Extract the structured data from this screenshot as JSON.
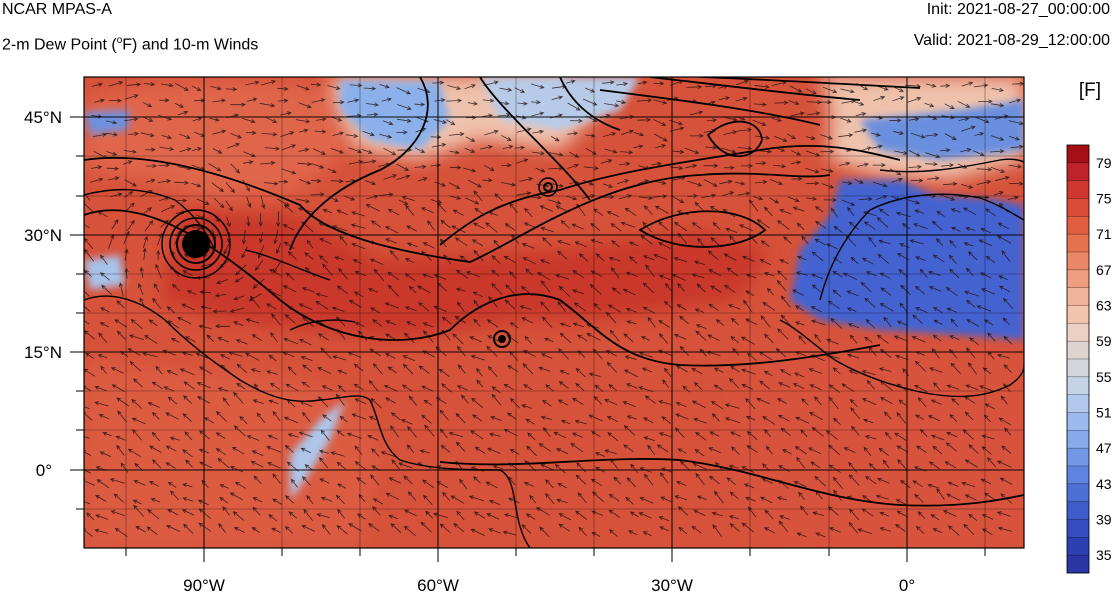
{
  "header": {
    "model": "NCAR MPAS-A",
    "field_prefix": "2-m Dew Point (",
    "field_deg": "o",
    "field_suffix": "F) and 10-m Winds",
    "init": "Init: 2021-08-27_00:00:00",
    "valid": "Valid: 2021-08-29_12:00:00"
  },
  "axes": {
    "lat_labels": [
      "45°N",
      "30°N",
      "15°N",
      "0°"
    ],
    "lon_labels": [
      "90°W",
      "60°W",
      "30°W",
      "0°"
    ]
  },
  "colorbar": {
    "unit": "[F]",
    "tick_labels": [
      "79",
      "75",
      "71",
      "67",
      "63",
      "59",
      "55",
      "51",
      "47",
      "43",
      "39",
      "35"
    ],
    "colors": [
      "#a50f15",
      "#c0242a",
      "#d0382f",
      "#da4b35",
      "#e05d40",
      "#e6714f",
      "#ea8766",
      "#ee9d7f",
      "#f1b29a",
      "#f2c4b0",
      "#ecd0c4",
      "#dfd3cf",
      "#d2d5da",
      "#c4d3e6",
      "#b2c8ec",
      "#9cbaee",
      "#86aaec",
      "#7197e6",
      "#5e84df",
      "#4d70d6",
      "#3f5ccb",
      "#354bbf",
      "#2e3fb2",
      "#2a36a4"
    ]
  },
  "map": {
    "colors": {
      "ocean_warm": "#d6523a",
      "land_warm": "#e0664c",
      "moist_core": "#c9382c",
      "cool_blue": "#4564d0",
      "light_blue": "#8cb0ea",
      "pale": "#efc2ad"
    },
    "wind_vectors": "arrow glyphs",
    "features": [
      "hurricane-eye",
      "storm-center",
      "pressure-contours"
    ]
  }
}
